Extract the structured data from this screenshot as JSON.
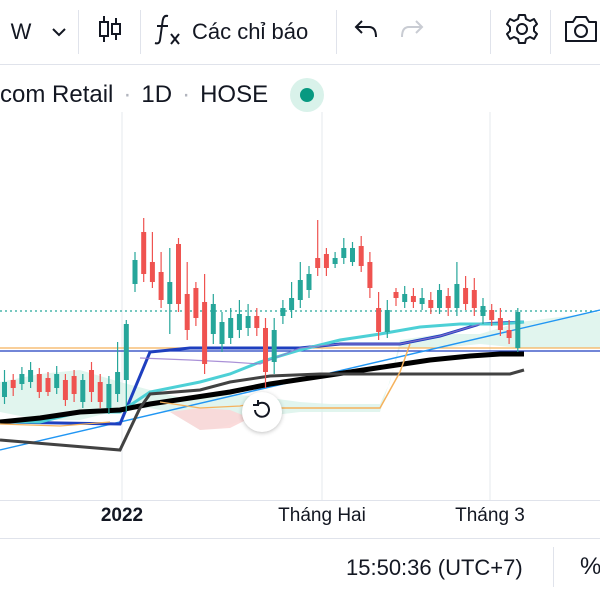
{
  "toolbar": {
    "interval": "W",
    "indicators_label": "Các chỉ báo"
  },
  "legend": {
    "symbol_name": "com Retail",
    "interval": "1D",
    "exchange": "HOSE"
  },
  "colors": {
    "up": "#26a69a",
    "down": "#ef5350",
    "status": "#089981",
    "line_black": "#000000",
    "line_cyan": "#4dd0d6",
    "line_navy": "#1e3fbf",
    "line_gray": "#424242",
    "trend_blue": "#2196f3",
    "orange": "#f5b25c"
  },
  "chart_data": {
    "type": "candlestick",
    "x_labels": [
      "2022",
      "Tháng Hai",
      "Tháng 3"
    ],
    "candles": []
  },
  "bottom": {
    "time": "15:50:36 (UTC+7)",
    "percent_label": "%"
  }
}
